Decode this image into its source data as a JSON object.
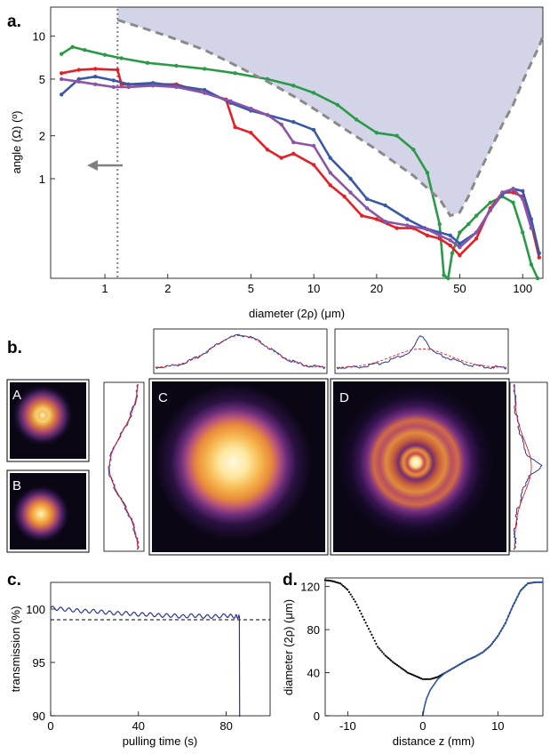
{
  "figure": {
    "panel_a_label": "a.",
    "panel_b_label": "b.",
    "panel_c_label": "c.",
    "panel_d_label": "d."
  },
  "chart_data": [
    {
      "panel": "a",
      "type": "line",
      "xscale": "log",
      "yscale": "log",
      "xlabel": "diameter (2ρ) (μm)",
      "ylabel": "angle (Ω) (º)",
      "xlim": [
        0.55,
        125
      ],
      "ylim": [
        0.2,
        16
      ],
      "xticks": [
        "1",
        "2",
        "5",
        "10",
        "20",
        "50",
        "100"
      ],
      "yticks": [
        "1",
        "2",
        "5",
        "10"
      ],
      "colors": {
        "green": "#2a9a48",
        "red": "#e32028",
        "blue": "#3a58a8",
        "purple": "#8a55a8",
        "bound": "#8a8a8a",
        "shade": "#d4d4e8"
      },
      "cutoff_x": 1.15,
      "series": [
        {
          "color": "green",
          "x": [
            0.62,
            0.7,
            0.8,
            1.0,
            1.2,
            1.6,
            2.2,
            3.0,
            4.2,
            6,
            8,
            10,
            13,
            16,
            20,
            25,
            30,
            35,
            40,
            42,
            44,
            46,
            50,
            55,
            60,
            70,
            80,
            90,
            100,
            110,
            118
          ],
          "y": [
            7.5,
            8.4,
            8.0,
            7.4,
            7.0,
            6.5,
            6.2,
            5.9,
            5.5,
            5.0,
            4.5,
            4.0,
            3.3,
            2.6,
            2.1,
            2.0,
            1.6,
            1.1,
            0.48,
            0.21,
            0.18,
            0.3,
            0.42,
            0.48,
            0.55,
            0.68,
            0.75,
            0.68,
            0.42,
            0.25,
            0.15
          ]
        },
        {
          "color": "red",
          "x": [
            0.62,
            0.75,
            0.9,
            1.15,
            1.2,
            1.6,
            2.2,
            3.0,
            3.8,
            4.2,
            5,
            6,
            7,
            8,
            10,
            12,
            14,
            17,
            20,
            25,
            30,
            35,
            40,
            45,
            50,
            60,
            70,
            80,
            90,
            100,
            110,
            120
          ],
          "y": [
            5.5,
            5.8,
            5.9,
            5.8,
            4.6,
            4.6,
            4.6,
            4.0,
            3.6,
            2.3,
            2.1,
            1.6,
            1.4,
            1.5,
            1.25,
            0.9,
            0.75,
            0.55,
            0.52,
            0.45,
            0.45,
            0.4,
            0.38,
            0.34,
            0.29,
            0.38,
            0.62,
            0.8,
            0.8,
            0.75,
            0.48,
            0.28
          ]
        },
        {
          "color": "blue",
          "x": [
            0.62,
            0.75,
            0.9,
            1.1,
            1.3,
            1.7,
            2.2,
            3,
            4,
            5,
            6,
            8,
            10,
            12,
            15,
            18,
            22,
            28,
            34,
            40,
            45,
            50,
            60,
            70,
            80,
            90,
            100,
            110,
            120
          ],
          "y": [
            3.9,
            5.0,
            5.2,
            4.9,
            4.6,
            4.7,
            4.5,
            4.2,
            3.4,
            3.0,
            2.8,
            2.5,
            2.2,
            1.4,
            1.0,
            0.72,
            0.65,
            0.52,
            0.45,
            0.42,
            0.4,
            0.35,
            0.42,
            0.6,
            0.78,
            0.85,
            0.82,
            0.52,
            0.3
          ]
        },
        {
          "color": "purple",
          "x": [
            0.62,
            0.75,
            0.9,
            1.1,
            1.3,
            1.7,
            2.2,
            3,
            4,
            5,
            6,
            7,
            8,
            10,
            12,
            15,
            18,
            22,
            28,
            35,
            40,
            45,
            50,
            60,
            70,
            80,
            90,
            100,
            110
          ],
          "y": [
            5.0,
            4.8,
            4.6,
            4.4,
            4.4,
            4.5,
            4.4,
            4.0,
            3.5,
            3.1,
            2.8,
            2.4,
            1.8,
            1.7,
            1.1,
            0.8,
            0.62,
            0.5,
            0.47,
            0.44,
            0.4,
            0.37,
            0.33,
            0.42,
            0.6,
            0.8,
            0.85,
            0.72,
            0.45
          ]
        },
        {
          "color": "bound",
          "x": [
            1.15,
            1.5,
            2,
            3,
            4,
            6,
            8,
            10,
            15,
            20,
            30,
            40,
            45,
            50,
            55,
            60,
            70,
            80,
            90,
            100,
            110,
            120,
            125
          ],
          "y": [
            13,
            11.5,
            10,
            8,
            6.5,
            4.8,
            3.8,
            3.1,
            2.1,
            1.6,
            1.05,
            0.72,
            0.55,
            0.58,
            0.75,
            1.0,
            1.6,
            2.4,
            3.3,
            4.8,
            6.5,
            8.5,
            10
          ]
        }
      ]
    },
    {
      "panel": "b",
      "type": "heatmap",
      "inset_labels": [
        "A",
        "B",
        "C",
        "D"
      ],
      "colors": {
        "profile": "#2c3494",
        "fit": "#e32028",
        "img_core": "#fff7d8",
        "img_mid": "#f0a040",
        "img_outer": "#8a3a8a",
        "img_bg": "#0a0614"
      }
    },
    {
      "panel": "c",
      "type": "line",
      "xlabel": "pulling time (s)",
      "ylabel": "transmission (%)",
      "xlim": [
        0,
        100
      ],
      "ylim": [
        90,
        102.5
      ],
      "xticks": [
        "0",
        "40",
        "80"
      ],
      "yticks": [
        "90",
        "95",
        "100"
      ],
      "colors": {
        "trace": "#2c3494"
      },
      "reference_level": 99.0,
      "trace": {
        "x": [
          0,
          5,
          10,
          15,
          20,
          25,
          30,
          35,
          40,
          45,
          50,
          55,
          60,
          65,
          70,
          75,
          80,
          84,
          86,
          86.1
        ],
        "y": [
          100.1,
          100.0,
          99.9,
          99.8,
          99.8,
          99.7,
          99.6,
          99.6,
          99.5,
          99.5,
          99.4,
          99.4,
          99.3,
          99.4,
          99.3,
          99.3,
          99.4,
          99.3,
          99.3,
          89.9
        ]
      }
    },
    {
      "panel": "d",
      "type": "line",
      "xlabel": "distance z (mm)",
      "ylabel": "diameter (2ρ) (μm)",
      "xlim": [
        -13,
        16
      ],
      "ylim": [
        0,
        128
      ],
      "xticks": [
        "-10",
        "0",
        "10"
      ],
      "yticks": [
        "0",
        "40",
        "80",
        "120"
      ],
      "colors": {
        "dotted": "#000000",
        "solid": "#2c54a8"
      },
      "dotted": {
        "x": [
          -13,
          -12,
          -11,
          -10,
          -9,
          -8,
          -7,
          -6,
          -5,
          -4,
          -3,
          -2,
          -1,
          0,
          1,
          2,
          3,
          4,
          5,
          6,
          7,
          8,
          9,
          10,
          11,
          12,
          13,
          14,
          15,
          16
        ],
        "y": [
          126,
          125,
          123,
          117,
          106,
          92,
          78,
          64,
          56,
          50,
          45,
          40,
          37,
          34,
          34,
          36,
          40,
          44,
          48,
          52,
          55,
          59,
          65,
          74,
          86,
          102,
          116,
          123,
          124,
          124
        ]
      },
      "solid": {
        "x": [
          0,
          0.2,
          0.5,
          1,
          2,
          3,
          4,
          5,
          6,
          7,
          8,
          9,
          10,
          11,
          12,
          13,
          14,
          15,
          16
        ],
        "y": [
          0,
          8,
          16,
          24,
          34,
          40,
          44,
          48,
          52,
          55,
          59,
          65,
          74,
          86,
          102,
          116,
          123,
          124,
          124
        ]
      }
    }
  ]
}
